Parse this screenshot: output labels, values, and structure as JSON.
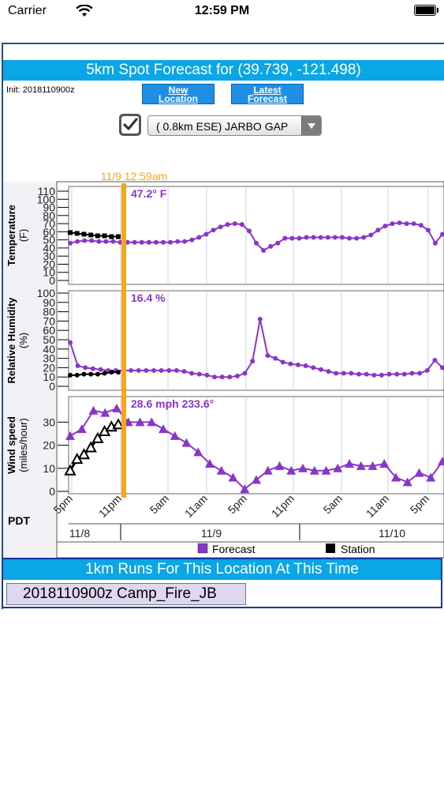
{
  "status_bar": {
    "carrier": "Carrier",
    "time": "12:59 PM"
  },
  "header": {
    "title": "5km Spot Forecast for (39.739, -121.498)",
    "init": "Init: 2018110900z",
    "new_location_line1": "New",
    "new_location_line2": "Location",
    "latest_forecast_line1": "Latest",
    "latest_forecast_line2": "Forecast"
  },
  "location_select": {
    "checked": true,
    "selected": "( 0.8km ESE) JARBO GAP"
  },
  "chart": {
    "now_label": "11/9 12:59am",
    "pdt_label": "PDT",
    "x_tick_labels": [
      "5pm",
      "11pm",
      "5am",
      "11am",
      "5pm",
      "11pm",
      "5am",
      "11am",
      "5pm"
    ],
    "day_labels": [
      "11/8",
      "11/9",
      "11/10"
    ],
    "legend_forecast": "Forecast",
    "legend_station": "Station",
    "colors": {
      "forecast": "#8a35c9",
      "station": "#000000",
      "now_line": "#f7a61c",
      "title_bar": "#0aa6e6"
    },
    "panels": [
      {
        "ylabel": "Temperature",
        "yunit": "(F)",
        "ticks": [
          "110",
          "100",
          "90",
          "80",
          "70",
          "60",
          "50",
          "40",
          "30",
          "20",
          "10",
          "0"
        ],
        "ylim": [
          0,
          110
        ],
        "readout": "47.2° F",
        "forecast_values": [
          46,
          48,
          49,
          49,
          48,
          48,
          48,
          47,
          47,
          47,
          47,
          47,
          47,
          47,
          47,
          48,
          48,
          50,
          53,
          57,
          62,
          66,
          69,
          70,
          69,
          61,
          46,
          37,
          42,
          46,
          52,
          52,
          52,
          53,
          53,
          53,
          53,
          53,
          53,
          52,
          52,
          53,
          56,
          62,
          67,
          70,
          71,
          70,
          70,
          68,
          62,
          46,
          57
        ],
        "station_values": [
          59,
          58,
          57,
          56,
          55,
          55,
          54,
          54
        ]
      },
      {
        "ylabel": "Relative Humidity",
        "yunit": "(%)",
        "ticks": [
          "100",
          "90",
          "80",
          "70",
          "60",
          "50",
          "40",
          "30",
          "20",
          "10",
          "0"
        ],
        "ylim": [
          0,
          100
        ],
        "readout": "16.4 %",
        "forecast_values": [
          47,
          22,
          20,
          19,
          18,
          17,
          17,
          17,
          17,
          17,
          17,
          17,
          17,
          17,
          17,
          16,
          14,
          13,
          12,
          10,
          10,
          10,
          11,
          14,
          27,
          72,
          33,
          30,
          26,
          24,
          23,
          22,
          20,
          18,
          16,
          14,
          14,
          14,
          13,
          13,
          12,
          12,
          13,
          13,
          13,
          14,
          14,
          17,
          28,
          20
        ],
        "station_values": [
          12,
          12,
          13,
          13,
          13,
          14,
          15,
          15
        ]
      },
      {
        "ylabel": "Wind speed",
        "yunit": "(miles/hour)",
        "ticks": [
          "30",
          "20",
          "10",
          "0"
        ],
        "ylim": [
          0,
          38
        ],
        "readout": "28.6 mph 233.6°",
        "forecast_values": [
          24,
          27,
          35,
          34,
          36,
          30,
          30,
          30,
          27,
          24,
          21,
          17,
          12,
          9,
          6,
          1,
          5,
          9,
          11,
          9,
          10,
          9,
          9,
          10,
          12,
          11,
          11,
          12,
          6,
          4,
          8,
          6,
          13
        ],
        "station_values": [
          9,
          14,
          16,
          19,
          23,
          26,
          28,
          29
        ]
      }
    ]
  }
}
